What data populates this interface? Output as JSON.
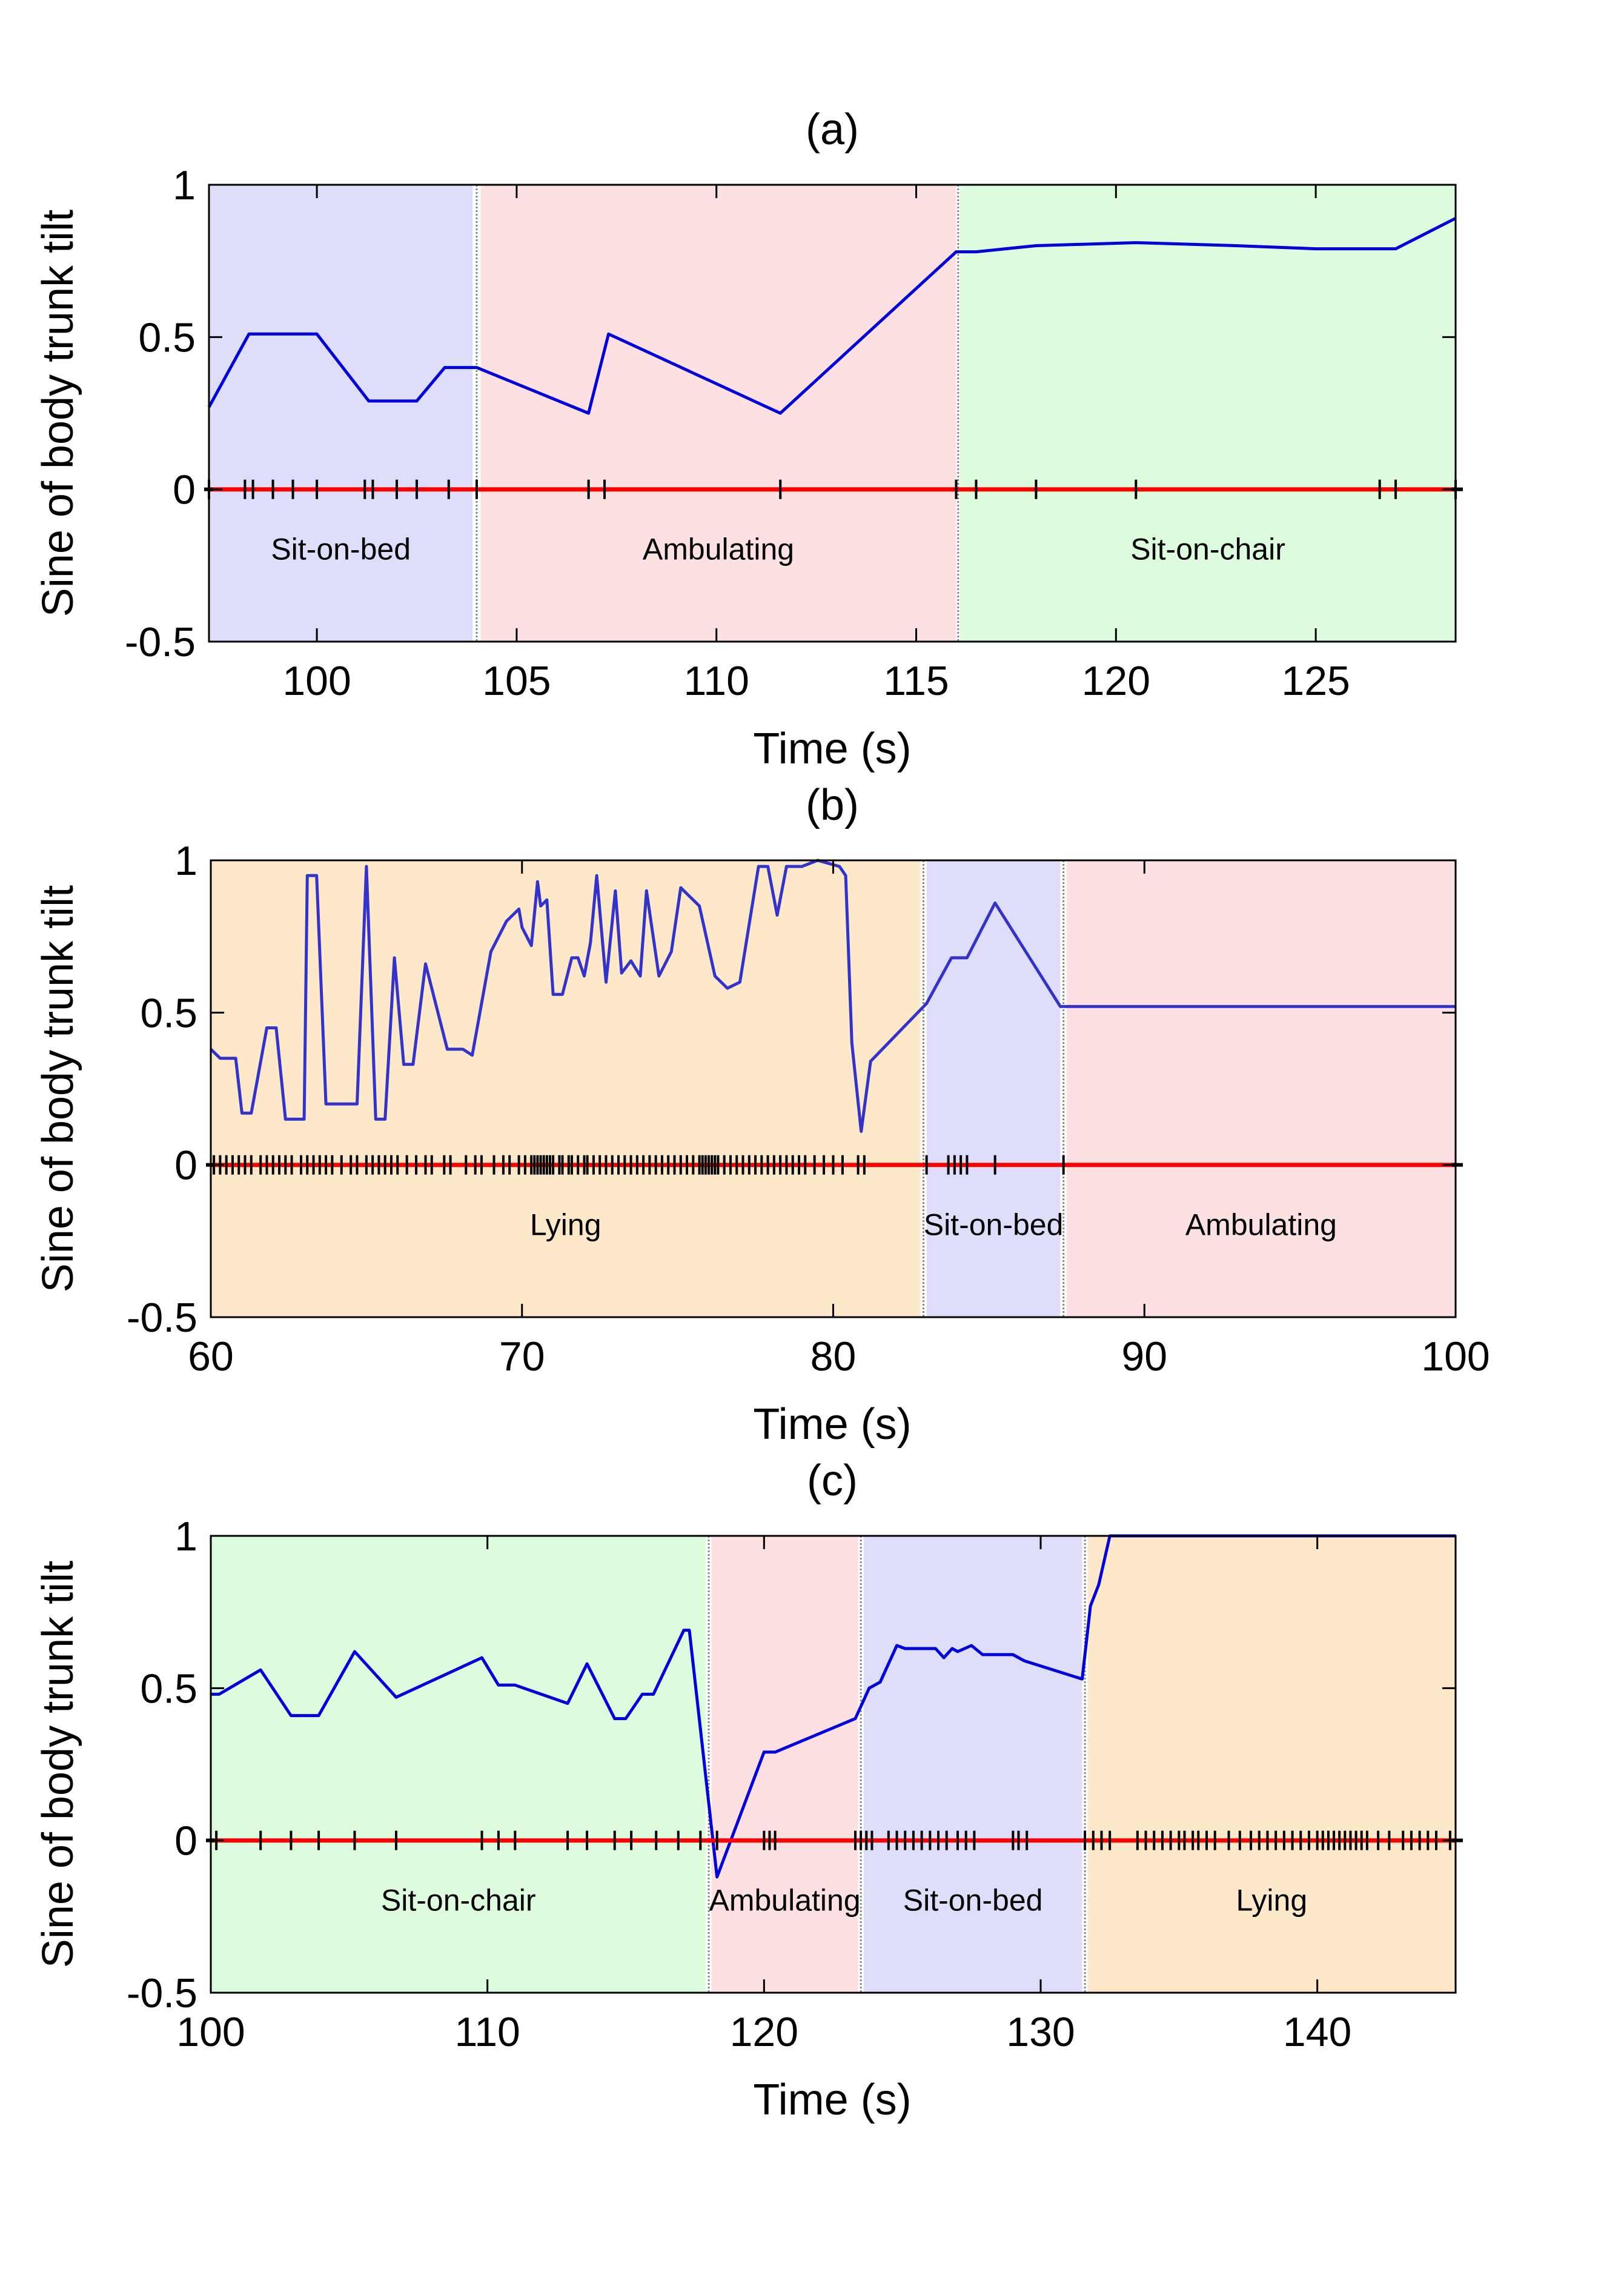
{
  "chart_data": [
    {
      "type": "line",
      "title": "(a)",
      "xlabel": "Time (s)",
      "ylabel": "Sine of body trunk tilt",
      "xlim": [
        97.3,
        128.5
      ],
      "ylim": [
        -0.5,
        1
      ],
      "xticks": [
        100,
        105,
        110,
        115,
        120,
        125
      ],
      "yticks": [
        -0.5,
        0,
        0.5,
        1
      ],
      "regions": [
        {
          "label": "Sit-on-bed",
          "start": 97.3,
          "end": 103.9,
          "color": "#dedefa"
        },
        {
          "label": "Ambulating",
          "start": 104.1,
          "end": 116.0,
          "color": "#fde0e1"
        },
        {
          "label": "Sit-on-chair",
          "start": 116.1,
          "end": 128.5,
          "color": "#ddfcdd"
        }
      ],
      "series": [
        {
          "name": "sine of trunk tilt",
          "color": "#0000dd",
          "x": [
            97.3,
            98.3,
            100.0,
            101.3,
            102.5,
            103.2,
            104.0,
            106.8,
            107.3,
            111.6,
            116.0,
            116.5,
            118.0,
            120.5,
            123.0,
            125.0,
            127.0,
            128.5
          ],
          "y": [
            0.27,
            0.51,
            0.51,
            0.29,
            0.29,
            0.4,
            0.4,
            0.25,
            0.51,
            0.25,
            0.78,
            0.78,
            0.8,
            0.81,
            0.8,
            0.79,
            0.79,
            0.89
          ]
        },
        {
          "name": "zero line",
          "color": "#ff0000",
          "x": [
            97.3,
            128.5
          ],
          "y": [
            0,
            0
          ]
        }
      ],
      "event_ticks": [
        97.3,
        98.2,
        98.4,
        98.9,
        99.4,
        100.0,
        101.2,
        101.4,
        102.0,
        102.5,
        103.3,
        104.0,
        106.8,
        107.2,
        111.6,
        116.0,
        116.5,
        118.0,
        120.5,
        126.6,
        127.0,
        128.5
      ]
    },
    {
      "type": "line",
      "title": "(b)",
      "xlabel": "Time (s)",
      "ylabel": "Sine of body trunk tilt",
      "xlim": [
        60,
        100
      ],
      "ylim": [
        -0.5,
        1
      ],
      "xticks": [
        60,
        70,
        80,
        90,
        100
      ],
      "yticks": [
        -0.5,
        0,
        0.5,
        1
      ],
      "regions": [
        {
          "label": "Lying",
          "start": 60,
          "end": 82.8,
          "color": "#fde9c9"
        },
        {
          "label": "Sit-on-bed",
          "start": 83.0,
          "end": 87.3,
          "color": "#dedefa"
        },
        {
          "label": "Ambulating",
          "start": 87.5,
          "end": 100,
          "color": "#fde0e1"
        }
      ],
      "series": [
        {
          "name": "sine of trunk tilt",
          "color": "#3333cc",
          "x": [
            60.0,
            60.3,
            60.8,
            61.0,
            61.3,
            61.8,
            62.1,
            62.4,
            63.0,
            63.1,
            63.4,
            63.7,
            64.0,
            64.7,
            65.0,
            65.3,
            65.6,
            65.9,
            66.2,
            66.5,
            66.9,
            67.6,
            68.1,
            68.4,
            69.0,
            69.5,
            69.9,
            70.0,
            70.3,
            70.5,
            70.6,
            70.8,
            71.0,
            71.3,
            71.6,
            71.8,
            72.0,
            72.2,
            72.4,
            72.7,
            73.0,
            73.2,
            73.5,
            73.8,
            74.0,
            74.4,
            74.8,
            75.1,
            75.7,
            76.2,
            76.6,
            77.0,
            77.6,
            77.9,
            78.2,
            78.5,
            79.0,
            79.5,
            80.2,
            80.4,
            80.6,
            80.9,
            81.2,
            83.0,
            83.8,
            84.3,
            85.2,
            87.3,
            88,
            100
          ],
          "y": [
            0.38,
            0.35,
            0.35,
            0.17,
            0.17,
            0.45,
            0.45,
            0.15,
            0.15,
            0.95,
            0.95,
            0.2,
            0.2,
            0.2,
            0.98,
            0.15,
            0.15,
            0.68,
            0.33,
            0.33,
            0.66,
            0.38,
            0.38,
            0.36,
            0.7,
            0.8,
            0.84,
            0.78,
            0.72,
            0.93,
            0.85,
            0.87,
            0.56,
            0.56,
            0.68,
            0.68,
            0.62,
            0.73,
            0.95,
            0.6,
            0.9,
            0.63,
            0.67,
            0.62,
            0.9,
            0.62,
            0.7,
            0.91,
            0.85,
            0.62,
            0.58,
            0.6,
            0.98,
            0.98,
            0.82,
            0.98,
            0.98,
            1.0,
            0.98,
            0.95,
            0.4,
            0.11,
            0.34,
            0.53,
            0.68,
            0.68,
            0.86,
            0.52,
            0.52,
            0.52
          ]
        },
        {
          "name": "zero line",
          "color": "#ff0000",
          "x": [
            60,
            100
          ],
          "y": [
            0,
            0
          ]
        }
      ],
      "event_ticks": [
        60.1,
        60.3,
        60.5,
        60.7,
        60.9,
        61.1,
        61.3,
        61.6,
        61.8,
        62.0,
        62.2,
        62.4,
        62.6,
        62.9,
        63.1,
        63.3,
        63.5,
        63.7,
        63.9,
        64.2,
        64.5,
        64.7,
        65.0,
        65.2,
        65.4,
        65.6,
        65.8,
        66.0,
        66.3,
        66.6,
        66.9,
        67.1,
        67.5,
        67.7,
        68.2,
        68.5,
        68.7,
        69.1,
        69.4,
        69.6,
        69.9,
        70.1,
        70.3,
        70.4,
        70.5,
        70.6,
        70.7,
        70.8,
        70.9,
        71.0,
        71.2,
        71.3,
        71.5,
        71.6,
        71.8,
        72.0,
        72.1,
        72.3,
        72.5,
        72.7,
        72.9,
        73.1,
        73.3,
        73.5,
        73.7,
        73.9,
        74.1,
        74.3,
        74.5,
        74.7,
        74.9,
        75.1,
        75.3,
        75.5,
        75.7,
        75.8,
        75.9,
        76.0,
        76.1,
        76.2,
        76.3,
        76.5,
        76.7,
        76.9,
        77.1,
        77.3,
        77.5,
        77.7,
        77.9,
        78.1,
        78.3,
        78.5,
        78.7,
        78.9,
        79.1,
        79.4,
        79.7,
        80.0,
        80.3,
        80.8,
        81.0,
        83.0,
        83.7,
        83.9,
        84.1,
        84.3,
        85.2,
        87.4
      ]
    },
    {
      "type": "line",
      "title": "(c)",
      "xlabel": "Time (s)",
      "ylabel": "Sine of body trunk tilt",
      "xlim": [
        100,
        145
      ],
      "ylim": [
        -0.5,
        1
      ],
      "xticks": [
        100,
        110,
        120,
        130,
        140
      ],
      "yticks": [
        -0.5,
        0,
        0.5,
        1
      ],
      "regions": [
        {
          "label": "Sit-on-chair",
          "start": 100,
          "end": 117.9,
          "color": "#ddfcdd"
        },
        {
          "label": "Ambulating",
          "start": 118.1,
          "end": 123.4,
          "color": "#fde0e1"
        },
        {
          "label": "Sit-on-bed",
          "start": 123.6,
          "end": 131.5,
          "color": "#dedefa"
        },
        {
          "label": "Lying",
          "start": 131.7,
          "end": 145,
          "color": "#fde9c9"
        }
      ],
      "series": [
        {
          "name": "sine of trunk tilt",
          "color": "#0000dd",
          "x": [
            100.0,
            100.3,
            101.8,
            102.9,
            103.9,
            105.2,
            106.7,
            109.8,
            110.4,
            111.0,
            112.9,
            113.6,
            114.6,
            115.0,
            115.6,
            116.0,
            117.1,
            117.3,
            118.3,
            120.0,
            120.4,
            123.3,
            123.8,
            124.2,
            124.8,
            125.1,
            126.2,
            126.5,
            126.8,
            127.0,
            127.5,
            127.9,
            129.0,
            129.4,
            131.5,
            131.8,
            132.1,
            132.5,
            145.0
          ],
          "y": [
            0.48,
            0.48,
            0.56,
            0.41,
            0.41,
            0.62,
            0.47,
            0.6,
            0.51,
            0.51,
            0.45,
            0.58,
            0.4,
            0.4,
            0.48,
            0.48,
            0.69,
            0.69,
            -0.12,
            0.29,
            0.29,
            0.4,
            0.5,
            0.52,
            0.64,
            0.63,
            0.63,
            0.6,
            0.63,
            0.62,
            0.64,
            0.61,
            0.61,
            0.59,
            0.53,
            0.77,
            0.84,
            1.0,
            1.0
          ]
        },
        {
          "name": "zero line",
          "color": "#ff0000",
          "x": [
            100,
            145
          ],
          "y": [
            0,
            0
          ]
        }
      ],
      "event_ticks": [
        100.2,
        101.8,
        102.9,
        103.9,
        105.2,
        106.7,
        109.8,
        110.4,
        111.0,
        112.9,
        113.6,
        114.6,
        115.2,
        116.1,
        116.9,
        117.7,
        118.3,
        120.0,
        120.2,
        120.4,
        123.3,
        123.5,
        123.7,
        123.9,
        124.5,
        124.8,
        125.1,
        125.4,
        125.7,
        126.0,
        126.3,
        126.6,
        127.0,
        127.3,
        127.6,
        129.0,
        129.2,
        129.5,
        131.6,
        131.9,
        132.2,
        132.5,
        133.5,
        133.8,
        134.1,
        134.4,
        134.7,
        135.0,
        135.2,
        135.5,
        135.7,
        136.0,
        136.3,
        136.8,
        137.2,
        137.6,
        137.9,
        138.2,
        138.5,
        138.8,
        139.1,
        139.4,
        139.7,
        140.0,
        140.2,
        140.4,
        140.6,
        140.8,
        141.0,
        141.2,
        141.4,
        141.6,
        141.8,
        142.2,
        142.6,
        143.1,
        143.4,
        143.7,
        144.0,
        144.3,
        144.8
      ]
    }
  ]
}
